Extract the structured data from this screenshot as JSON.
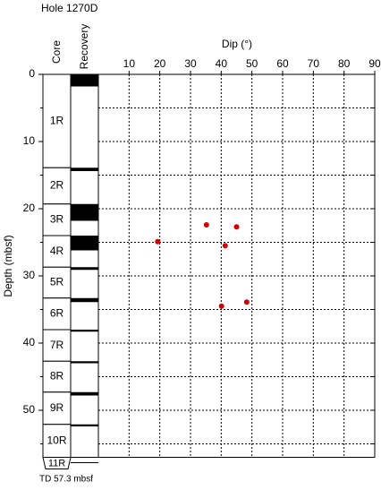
{
  "chart_data": {
    "type": "scatter",
    "title": "Hole 1270D",
    "xlabel": "Dip (°)",
    "ylabel": "Depth (mbsf)",
    "core_header": "Core",
    "recovery_header": "Recovery",
    "note": "TD 57.3 mbsf",
    "x": [
      19.3,
      35.2,
      45,
      41.3,
      40.1,
      48.3
    ],
    "y": [
      24.9,
      22.4,
      22.7,
      25.5,
      34.5,
      33.9
    ],
    "color": "#d40000",
    "xlim": [
      0,
      90
    ],
    "ylim": [
      0,
      57
    ],
    "xticks": [
      10,
      20,
      30,
      40,
      50,
      60,
      70,
      80,
      90
    ],
    "yticks": [
      0,
      10,
      20,
      30,
      40,
      50
    ],
    "yminor_ticks": [
      5,
      15,
      25,
      35,
      45,
      55
    ],
    "grid": true,
    "cores": [
      {
        "name": "1R",
        "top": 0,
        "bottom": 13.9
      },
      {
        "name": "2R",
        "top": 13.9,
        "bottom": 19.3
      },
      {
        "name": "3R",
        "top": 19.3,
        "bottom": 24
      },
      {
        "name": "4R",
        "top": 24,
        "bottom": 28.7
      },
      {
        "name": "5R",
        "top": 28.7,
        "bottom": 33.3
      },
      {
        "name": "6R",
        "top": 33.3,
        "bottom": 38
      },
      {
        "name": "7R",
        "top": 38,
        "bottom": 42.7
      },
      {
        "name": "8R",
        "top": 42.7,
        "bottom": 47.3
      },
      {
        "name": "9R",
        "top": 47.3,
        "bottom": 52.1
      },
      {
        "name": "10R",
        "top": 52.1,
        "bottom": 57
      },
      {
        "name": "11R",
        "top": 57,
        "bottom": 57.3
      }
    ],
    "recovery": [
      {
        "top": 0,
        "bottom": 1.8
      },
      {
        "top": 13.9,
        "bottom": 14.4
      },
      {
        "top": 19.3,
        "bottom": 21.8
      },
      {
        "top": 24,
        "bottom": 26.2
      },
      {
        "top": 28.7,
        "bottom": 29.1
      },
      {
        "top": 33.3,
        "bottom": 33.9
      },
      {
        "top": 38,
        "bottom": 38.3
      },
      {
        "top": 42.7,
        "bottom": 43
      },
      {
        "top": 47.3,
        "bottom": 47.8
      },
      {
        "top": 52.1,
        "bottom": 52.4
      }
    ]
  }
}
